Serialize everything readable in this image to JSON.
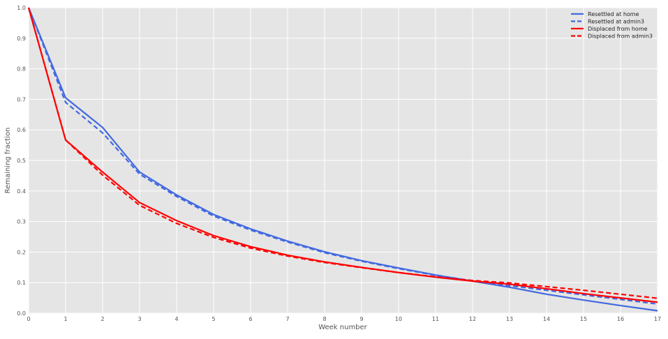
{
  "chart_data": {
    "type": "line",
    "title": "",
    "xlabel": "Week number",
    "ylabel": "Remaining fraction",
    "xlim": [
      0,
      17
    ],
    "ylim": [
      0.0,
      1.0
    ],
    "grid": true,
    "legend_position": "top-right",
    "x_ticks": [
      "0",
      "1",
      "2",
      "3",
      "4",
      "5",
      "6",
      "7",
      "8",
      "9",
      "10",
      "11",
      "12",
      "13",
      "14",
      "15",
      "16",
      "17"
    ],
    "y_ticks": [
      "0.0",
      "0.1",
      "0.2",
      "0.3",
      "0.4",
      "0.5",
      "0.6",
      "0.7",
      "0.8",
      "0.9",
      "1.0"
    ],
    "x": [
      0,
      1,
      2,
      3,
      4,
      5,
      6,
      7,
      8,
      9,
      10,
      11,
      12,
      13,
      14,
      15,
      16,
      17
    ],
    "series": [
      {
        "name": "Resettled at home",
        "color": "#4169e1",
        "style": "solid",
        "values": [
          1.0,
          0.705,
          0.608,
          0.462,
          0.387,
          0.323,
          0.276,
          0.236,
          0.201,
          0.172,
          0.148,
          0.125,
          0.105,
          0.085,
          0.062,
          0.043,
          0.025,
          0.008
        ]
      },
      {
        "name": "Resettled at admin3",
        "color": "#4169e1",
        "style": "dashed",
        "values": [
          1.0,
          0.69,
          0.59,
          0.455,
          0.382,
          0.318,
          0.272,
          0.233,
          0.198,
          0.17,
          0.146,
          0.124,
          0.106,
          0.09,
          0.075,
          0.06,
          0.045,
          0.03
        ]
      },
      {
        "name": "Displaced from home",
        "color": "#ff0000",
        "style": "solid",
        "values": [
          1.0,
          0.567,
          0.462,
          0.362,
          0.303,
          0.254,
          0.218,
          0.19,
          0.168,
          0.15,
          0.133,
          0.118,
          0.105,
          0.095,
          0.08,
          0.064,
          0.05,
          0.036
        ]
      },
      {
        "name": "Displaced from admin3",
        "color": "#ff0000",
        "style": "dashed",
        "values": [
          1.0,
          0.567,
          0.452,
          0.353,
          0.294,
          0.248,
          0.213,
          0.187,
          0.166,
          0.149,
          0.133,
          0.119,
          0.107,
          0.099,
          0.087,
          0.075,
          0.062,
          0.049
        ]
      }
    ]
  }
}
